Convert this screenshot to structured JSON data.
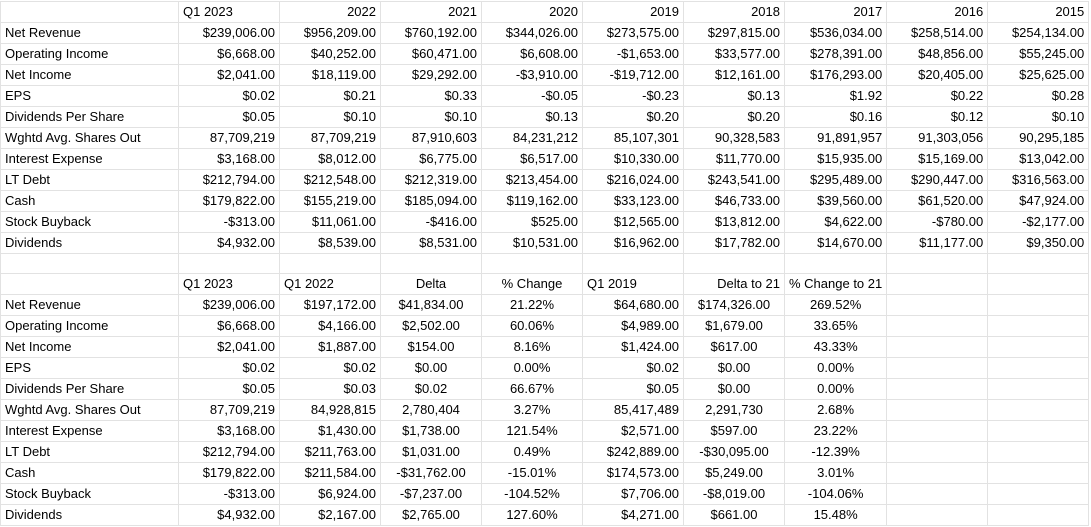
{
  "top_table": {
    "headers": [
      "",
      "Q1 2023",
      "2022",
      "2021",
      "2020",
      "2019",
      "2018",
      "2017",
      "2016",
      "2015"
    ],
    "rows": [
      {
        "label": "Net Revenue",
        "values": [
          "$239,006.00",
          "$956,209.00",
          "$760,192.00",
          "$344,026.00",
          "$273,575.00",
          "$297,815.00",
          "$536,034.00",
          "$258,514.00",
          "$254,134.00"
        ]
      },
      {
        "label": "Operating Income",
        "values": [
          "$6,668.00",
          "$40,252.00",
          "$60,471.00",
          "$6,608.00",
          "-$1,653.00",
          "$33,577.00",
          "$278,391.00",
          "$48,856.00",
          "$55,245.00"
        ]
      },
      {
        "label": "Net Income",
        "values": [
          "$2,041.00",
          "$18,119.00",
          "$29,292.00",
          "-$3,910.00",
          "-$19,712.00",
          "$12,161.00",
          "$176,293.00",
          "$20,405.00",
          "$25,625.00"
        ]
      },
      {
        "label": "EPS",
        "values": [
          "$0.02",
          "$0.21",
          "$0.33",
          "-$0.05",
          "-$0.23",
          "$0.13",
          "$1.92",
          "$0.22",
          "$0.28"
        ]
      },
      {
        "label": "Dividends Per Share",
        "values": [
          "$0.05",
          "$0.10",
          "$0.10",
          "$0.13",
          "$0.20",
          "$0.20",
          "$0.16",
          "$0.12",
          "$0.10"
        ]
      },
      {
        "label": "Wghtd Avg. Shares Out",
        "values": [
          "87,709,219",
          "87,709,219",
          "87,910,603",
          "84,231,212",
          "85,107,301",
          "90,328,583",
          "91,891,957",
          "91,303,056",
          "90,295,185"
        ]
      },
      {
        "label": "Interest Expense",
        "values": [
          "$3,168.00",
          "$8,012.00",
          "$6,775.00",
          "$6,517.00",
          "$10,330.00",
          "$11,770.00",
          "$15,935.00",
          "$15,169.00",
          "$13,042.00"
        ]
      },
      {
        "label": "LT Debt",
        "values": [
          "$212,794.00",
          "$212,548.00",
          "$212,319.00",
          "$213,454.00",
          "$216,024.00",
          "$243,541.00",
          "$295,489.00",
          "$290,447.00",
          "$316,563.00"
        ]
      },
      {
        "label": "Cash",
        "values": [
          "$179,822.00",
          "$155,219.00",
          "$185,094.00",
          "$119,162.00",
          "$33,123.00",
          "$46,733.00",
          "$39,560.00",
          "$61,520.00",
          "$47,924.00"
        ]
      },
      {
        "label": "Stock Buyback",
        "values": [
          "-$313.00",
          "$11,061.00",
          "-$416.00",
          "$525.00",
          "$12,565.00",
          "$13,812.00",
          "$4,622.00",
          "-$780.00",
          "-$2,177.00"
        ]
      },
      {
        "label": "Dividends",
        "values": [
          "$4,932.00",
          "$8,539.00",
          "$8,531.00",
          "$10,531.00",
          "$16,962.00",
          "$17,782.00",
          "$14,670.00",
          "$11,177.00",
          "$9,350.00"
        ]
      }
    ]
  },
  "bottom_table": {
    "headers": [
      "",
      "Q1 2023",
      "Q1 2022",
      "Delta",
      "% Change",
      "Q1 2019",
      "Delta to 21",
      "% Change to 21",
      "",
      ""
    ],
    "rows": [
      {
        "label": "Net Revenue",
        "values": [
          "$239,006.00",
          "$197,172.00",
          "$41,834.00",
          "21.22%",
          "$64,680.00",
          "$174,326.00",
          "269.52%",
          "",
          ""
        ]
      },
      {
        "label": "Operating Income",
        "values": [
          "$6,668.00",
          "$4,166.00",
          "$2,502.00",
          "60.06%",
          "$4,989.00",
          "$1,679.00",
          "33.65%",
          "",
          ""
        ]
      },
      {
        "label": "Net Income",
        "values": [
          "$2,041.00",
          "$1,887.00",
          "$154.00",
          "8.16%",
          "$1,424.00",
          "$617.00",
          "43.33%",
          "",
          ""
        ]
      },
      {
        "label": "EPS",
        "values": [
          "$0.02",
          "$0.02",
          "$0.00",
          "0.00%",
          "$0.02",
          "$0.00",
          "0.00%",
          "",
          ""
        ]
      },
      {
        "label": "Dividends Per Share",
        "values": [
          "$0.05",
          "$0.03",
          "$0.02",
          "66.67%",
          "$0.05",
          "$0.00",
          "0.00%",
          "",
          ""
        ]
      },
      {
        "label": "Wghtd Avg. Shares Out",
        "values": [
          "87,709,219",
          "84,928,815",
          "2,780,404",
          "3.27%",
          "85,417,489",
          "2,291,730",
          "2.68%",
          "",
          ""
        ]
      },
      {
        "label": "Interest Expense",
        "values": [
          "$3,168.00",
          "$1,430.00",
          "$1,738.00",
          "121.54%",
          "$2,571.00",
          "$597.00",
          "23.22%",
          "",
          ""
        ]
      },
      {
        "label": "LT Debt",
        "values": [
          "$212,794.00",
          "$211,763.00",
          "$1,031.00",
          "0.49%",
          "$242,889.00",
          "-$30,095.00",
          "-12.39%",
          "",
          ""
        ]
      },
      {
        "label": "Cash",
        "values": [
          "$179,822.00",
          "$211,584.00",
          "-$31,762.00",
          "-15.01%",
          "$174,573.00",
          "$5,249.00",
          "3.01%",
          "",
          ""
        ]
      },
      {
        "label": "Stock Buyback",
        "values": [
          "-$313.00",
          "$6,924.00",
          "-$7,237.00",
          "-104.52%",
          "$7,706.00",
          "-$8,019.00",
          "-104.06%",
          "",
          ""
        ]
      },
      {
        "label": "Dividends",
        "values": [
          "$4,932.00",
          "$2,167.00",
          "$2,765.00",
          "127.60%",
          "$4,271.00",
          "$661.00",
          "15.48%",
          "",
          ""
        ]
      }
    ]
  },
  "colors": {
    "gridline": "#e2e2e2",
    "text": "#000000",
    "background": "#ffffff"
  }
}
